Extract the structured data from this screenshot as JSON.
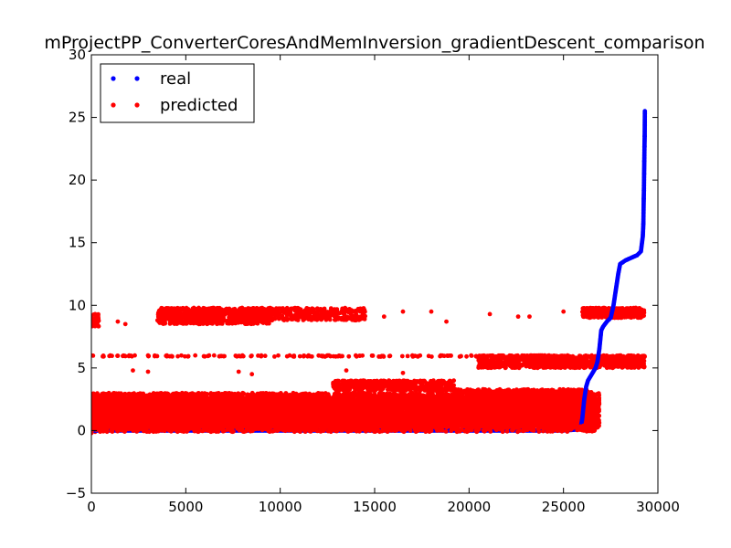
{
  "chart_data": {
    "type": "scatter",
    "title": "mProjectPP_ConverterCoresAndMemInversion_gradientDescent_comparison",
    "xlabel": "",
    "ylabel": "",
    "xlim": [
      0,
      30000
    ],
    "ylim": [
      -5,
      30
    ],
    "x_ticks": [
      0,
      5000,
      10000,
      15000,
      20000,
      25000,
      30000
    ],
    "x_tick_labels": [
      "0",
      "5000",
      "10000",
      "15000",
      "20000",
      "25000",
      "30000"
    ],
    "y_ticks": [
      -5,
      0,
      5,
      10,
      15,
      20,
      25,
      30
    ],
    "y_tick_labels": [
      "−5",
      "0",
      "5",
      "10",
      "15",
      "20",
      "25",
      "30"
    ],
    "grid": false,
    "legend_position": "top-left",
    "series": [
      {
        "name": "real",
        "color": "#0000ff",
        "description_points": "sorted true values, near 0 until ~25900 then rising",
        "points": [
          [
            0,
            0.0
          ],
          [
            5000,
            0.0
          ],
          [
            10000,
            0.0
          ],
          [
            15000,
            0.0
          ],
          [
            20000,
            0.0
          ],
          [
            25000,
            0.0
          ],
          [
            25900,
            0.1
          ],
          [
            26000,
            1.0
          ],
          [
            26100,
            2.5
          ],
          [
            26200,
            3.5
          ],
          [
            26300,
            4.0
          ],
          [
            26500,
            4.5
          ],
          [
            26700,
            5.0
          ],
          [
            26800,
            5.5
          ],
          [
            26900,
            6.5
          ],
          [
            27000,
            8.0
          ],
          [
            27100,
            8.3
          ],
          [
            27300,
            8.7
          ],
          [
            27500,
            9.0
          ],
          [
            27650,
            10.0
          ],
          [
            27800,
            11.5
          ],
          [
            27900,
            12.5
          ],
          [
            28000,
            13.3
          ],
          [
            28300,
            13.6
          ],
          [
            28600,
            13.8
          ],
          [
            28900,
            14.0
          ],
          [
            29100,
            14.3
          ],
          [
            29200,
            15.5
          ],
          [
            29230,
            16.5
          ],
          [
            29250,
            18.5
          ],
          [
            29260,
            19.2
          ],
          [
            29270,
            20.5
          ],
          [
            29280,
            21.5
          ],
          [
            29290,
            22.7
          ],
          [
            29300,
            23.5
          ],
          [
            29310,
            25.5
          ]
        ]
      },
      {
        "name": "predicted",
        "color": "#ff0000",
        "bands": [
          {
            "x_range": [
              0,
              26900
            ],
            "y_range": [
              0.2,
              3.0
            ],
            "density": 0.6
          },
          {
            "x_range": [
              0,
              26900
            ],
            "y_range": [
              0.5,
              2.5
            ],
            "density": 1.0
          },
          {
            "x_range": [
              12800,
              19200
            ],
            "y_range": [
              3.2,
              4.0
            ],
            "density": 0.7
          },
          {
            "x_range": [
              19200,
              26500
            ],
            "y_range": [
              2.5,
              3.3
            ],
            "density": 0.6
          },
          {
            "x_range": [
              20500,
              29300
            ],
            "y_range": [
              5.0,
              6.0
            ],
            "density": 0.7
          },
          {
            "x_range": [
              3500,
              9500
            ],
            "y_range": [
              8.5,
              9.8
            ],
            "density": 0.6
          },
          {
            "x_range": [
              7500,
              14500
            ],
            "y_range": [
              8.8,
              9.8
            ],
            "density": 0.4
          },
          {
            "x_range": [
              26000,
              29300
            ],
            "y_range": [
              9.0,
              9.8
            ],
            "density": 0.9
          },
          {
            "x_range": [
              0,
              29300
            ],
            "y_range": [
              5.9,
              6.0
            ],
            "density": 0.25
          },
          {
            "x_range": [
              0,
              400
            ],
            "y_range": [
              8.3,
              9.3
            ],
            "density": 0.5
          }
        ],
        "points": [
          [
            0,
            6.0
          ],
          [
            1000,
            6.0
          ],
          [
            2000,
            6.0
          ],
          [
            2300,
            6.0
          ],
          [
            3000,
            6.0
          ],
          [
            4000,
            6.0
          ],
          [
            5500,
            6.0
          ],
          [
            6500,
            6.0
          ],
          [
            8000,
            6.0
          ],
          [
            9000,
            6.0
          ],
          [
            10500,
            6.0
          ],
          [
            11500,
            6.0
          ],
          [
            12500,
            6.0
          ],
          [
            14000,
            6.0
          ],
          [
            17000,
            6.0
          ],
          [
            18500,
            6.0
          ],
          [
            200,
            8.5
          ],
          [
            200,
            9.3
          ],
          [
            1400,
            8.7
          ],
          [
            1800,
            8.5
          ],
          [
            3500,
            8.8
          ],
          [
            16500,
            9.5
          ],
          [
            18000,
            9.5
          ],
          [
            18800,
            8.7
          ],
          [
            21100,
            9.3
          ],
          [
            22600,
            9.1
          ],
          [
            23200,
            9.1
          ],
          [
            25000,
            9.5
          ],
          [
            2200,
            4.8
          ],
          [
            3000,
            4.7
          ],
          [
            7800,
            4.7
          ],
          [
            8500,
            4.5
          ],
          [
            13500,
            4.8
          ],
          [
            16500,
            4.6
          ],
          [
            15500,
            9.1
          ],
          [
            14000,
            9.5
          ],
          [
            0,
            -0.2
          ],
          [
            200,
            -0.1
          ],
          [
            29200,
            5.9
          ],
          [
            29250,
            5.8
          ],
          [
            29300,
            5.9
          ]
        ]
      }
    ]
  }
}
